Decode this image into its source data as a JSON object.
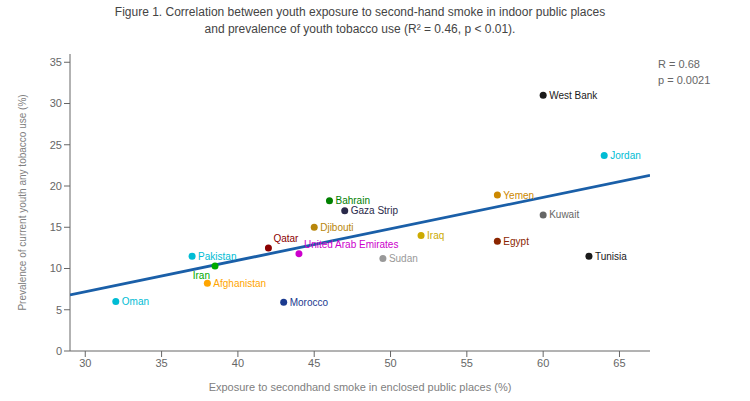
{
  "chart_data": {
    "type": "scatter",
    "title": "Figure 1. Correlation between youth exposure to second-hand smoke in indoor public places",
    "subtitle": "and prevalence of youth tobacco use (R² = 0.46, p < 0.01).",
    "x_label": "Exposure to secondhand smoke  in enclosed public places (%)",
    "y_label": "Prevalence of current youth any tobacco use (%)",
    "annotations": [
      "R = 0.68",
      "p = 0.0021"
    ],
    "xlim": [
      29,
      67
    ],
    "ylim": [
      0,
      36
    ],
    "xticks": [
      30,
      35,
      40,
      45,
      50,
      55,
      60,
      65
    ],
    "yticks": [
      0,
      5,
      10,
      15,
      20,
      25,
      30,
      35
    ],
    "grid": false,
    "series": [
      {
        "type": "line",
        "x": [
          29,
          67
        ],
        "values": [
          6.8,
          21.3
        ],
        "color": "#1a5fa8"
      },
      {
        "type": "scatter",
        "x": [
          32,
          37,
          38,
          38.5,
          42,
          43,
          45,
          46,
          47,
          44,
          49.5,
          52,
          57,
          57,
          60,
          60,
          63,
          64
        ],
        "values": [
          6.0,
          11.5,
          8.2,
          10.3,
          12.5,
          5.9,
          15.0,
          18.2,
          17.0,
          11.8,
          11.2,
          14.0,
          18.9,
          13.3,
          16.5,
          31.0,
          11.5,
          23.7
        ],
        "labels": [
          "Oman",
          "Pakistan",
          "Afghanistan",
          "Iran",
          "Qatar",
          "Morocco",
          "Djibouti",
          "Bahrain",
          "Gaza Strip",
          "United Arab Emirates",
          "Sudan",
          "Iraq",
          "Yemen",
          "Egypt",
          "Kuwait",
          "West Bank",
          "Tunisia",
          "Jordan"
        ],
        "colors": [
          "#00bcd4",
          "#00bcd4",
          "#ffa500",
          "#00aa00",
          "#8b0000",
          "#1a3a8f",
          "#b8860b",
          "#008000",
          "#2a2a4a",
          "#cc00cc",
          "#999999",
          "#ccaa00",
          "#cc8800",
          "#8b2500",
          "#666666",
          "#1a1a1a",
          "#1a1a1a",
          "#00bcd4"
        ]
      }
    ]
  }
}
